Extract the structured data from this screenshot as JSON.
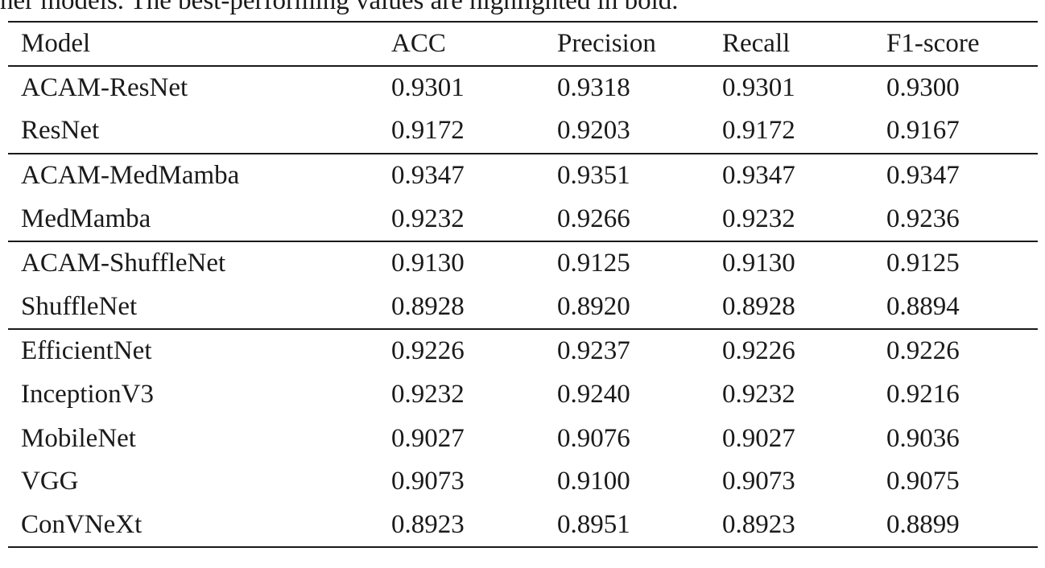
{
  "caption": "her models. The best-performing values are highlighted in bold.",
  "table": {
    "headers": [
      "Model",
      "ACC",
      "Precision",
      "Recall",
      "F1-score"
    ],
    "groups": [
      {
        "rows": [
          [
            "ACAM-ResNet",
            "0.9301",
            "0.9318",
            "0.9301",
            "0.9300"
          ],
          [
            "ResNet",
            "0.9172",
            "0.9203",
            "0.9172",
            "0.9167"
          ]
        ]
      },
      {
        "rows": [
          [
            "ACAM-MedMamba",
            "0.9347",
            "0.9351",
            "0.9347",
            "0.9347"
          ],
          [
            "MedMamba",
            "0.9232",
            "0.9266",
            "0.9232",
            "0.9236"
          ]
        ]
      },
      {
        "rows": [
          [
            "ACAM-ShuffleNet",
            "0.9130",
            "0.9125",
            "0.9130",
            "0.9125"
          ],
          [
            "ShuffleNet",
            "0.8928",
            "0.8920",
            "0.8928",
            "0.8894"
          ]
        ]
      },
      {
        "rows": [
          [
            "EfficientNet",
            "0.9226",
            "0.9237",
            "0.9226",
            "0.9226"
          ],
          [
            "InceptionV3",
            "0.9232",
            "0.9240",
            "0.9232",
            "0.9216"
          ],
          [
            "MobileNet",
            "0.9027",
            "0.9076",
            "0.9027",
            "0.9036"
          ],
          [
            "VGG",
            "0.9073",
            "0.9100",
            "0.9073",
            "0.9075"
          ],
          [
            "ConVNeXt",
            "0.8923",
            "0.8951",
            "0.8923",
            "0.8899"
          ]
        ]
      }
    ]
  }
}
